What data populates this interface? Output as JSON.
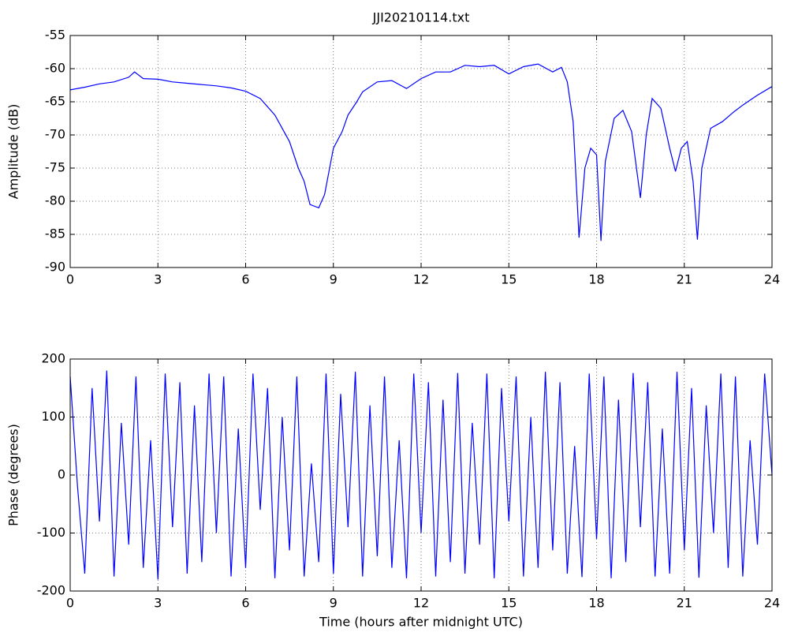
{
  "chart_data": [
    {
      "type": "line",
      "title": "JJI20210114.txt",
      "ylabel": "Amplitude (dB)",
      "color": "#0000ff",
      "x": [
        0,
        0.5,
        1,
        1.5,
        2,
        2.2,
        2.5,
        3,
        3.5,
        4,
        4.5,
        5,
        5.5,
        6,
        6.5,
        7,
        7.5,
        7.8,
        8,
        8.2,
        8.5,
        8.7,
        9,
        9.3,
        9.5,
        9.8,
        10,
        10.5,
        11,
        11.5,
        12,
        12.5,
        13,
        13.5,
        14,
        14.5,
        15,
        15.5,
        16,
        16.5,
        16.8,
        17,
        17.2,
        17.4,
        17.6,
        17.8,
        18,
        18.15,
        18.3,
        18.6,
        18.9,
        19.2,
        19.5,
        19.7,
        19.9,
        20.2,
        20.5,
        20.7,
        20.9,
        21.1,
        21.3,
        21.45,
        21.6,
        21.9,
        22.3,
        22.7,
        23,
        23.5,
        24
      ],
      "values": [
        -63.2,
        -62.8,
        -62.3,
        -62,
        -61.3,
        -60.5,
        -61.5,
        -61.6,
        -62,
        -62.2,
        -62.4,
        -62.6,
        -62.9,
        -63.4,
        -64.5,
        -67,
        -71,
        -75,
        -77,
        -80.5,
        -81,
        -79,
        -72,
        -69.5,
        -67,
        -65,
        -63.5,
        -62,
        -61.8,
        -63,
        -61.5,
        -60.5,
        -60.5,
        -59.5,
        -59.7,
        -59.5,
        -60.8,
        -59.7,
        -59.3,
        -60.5,
        -59.8,
        -62,
        -68,
        -85.5,
        -75,
        -72,
        -73,
        -86,
        -74,
        -67.5,
        -66.3,
        -69.5,
        -79.5,
        -70,
        -64.5,
        -66,
        -72,
        -75.5,
        -72,
        -71,
        -77,
        -85.8,
        -75,
        -69,
        -68,
        -66.5,
        -65.5,
        -64,
        -62.7
      ],
      "xlim": [
        0,
        24
      ],
      "ylim": [
        -90,
        -55
      ],
      "xticks": [
        0,
        3,
        6,
        9,
        12,
        15,
        18,
        21,
        24
      ],
      "yticks": [
        -90,
        -85,
        -80,
        -75,
        -70,
        -65,
        -60,
        -55
      ],
      "grid": true
    },
    {
      "type": "line",
      "xlabel": "Time (hours after midnight UTC)",
      "ylabel": "Phase (degrees)",
      "color": "#0000ff",
      "x": [
        0,
        0.25,
        0.5,
        0.75,
        1,
        1.25,
        1.5,
        1.75,
        2,
        2.25,
        2.5,
        2.75,
        3,
        3.25,
        3.5,
        3.75,
        4,
        4.25,
        4.5,
        4.75,
        5,
        5.25,
        5.5,
        5.75,
        6,
        6.25,
        6.5,
        6.75,
        7,
        7.25,
        7.5,
        7.75,
        8,
        8.25,
        8.5,
        8.75,
        9,
        9.25,
        9.5,
        9.75,
        10,
        10.25,
        10.5,
        10.75,
        11,
        11.25,
        11.5,
        11.75,
        12,
        12.25,
        12.5,
        12.75,
        13,
        13.25,
        13.5,
        13.75,
        14,
        14.25,
        14.5,
        14.75,
        15,
        15.25,
        15.5,
        15.75,
        16,
        16.25,
        16.5,
        16.75,
        17,
        17.25,
        17.5,
        17.75,
        18,
        18.25,
        18.5,
        18.75,
        19,
        19.25,
        19.5,
        19.75,
        20,
        20.25,
        20.5,
        20.75,
        21,
        21.25,
        21.5,
        21.75,
        22,
        22.25,
        22.5,
        22.75,
        23,
        23.25,
        23.5,
        23.75,
        24
      ],
      "values": [
        170,
        -20,
        -170,
        150,
        -80,
        180,
        -175,
        90,
        -120,
        170,
        -160,
        60,
        -180,
        175,
        -90,
        160,
        -170,
        120,
        -150,
        175,
        -100,
        170,
        -175,
        80,
        -160,
        175,
        -60,
        150,
        -178,
        100,
        -130,
        170,
        -175,
        20,
        -150,
        175,
        -170,
        140,
        -90,
        178,
        -175,
        120,
        -140,
        170,
        -160,
        60,
        -178,
        175,
        -100,
        160,
        -175,
        130,
        -150,
        176,
        -170,
        90,
        -120,
        175,
        -178,
        150,
        -80,
        170,
        -175,
        100,
        -160,
        178,
        -130,
        160,
        -170,
        50,
        -176,
        175,
        -110,
        170,
        -178,
        130,
        -150,
        176,
        -90,
        160,
        -175,
        80,
        -170,
        178,
        -130,
        150,
        -177,
        120,
        -100,
        175,
        -160,
        170,
        -175,
        60,
        -120,
        175,
        0
      ],
      "xlim": [
        0,
        24
      ],
      "ylim": [
        -200,
        200
      ],
      "xticks": [
        0,
        3,
        6,
        9,
        12,
        15,
        18,
        21,
        24
      ],
      "yticks": [
        -200,
        -100,
        0,
        100,
        200
      ],
      "grid": true
    }
  ]
}
